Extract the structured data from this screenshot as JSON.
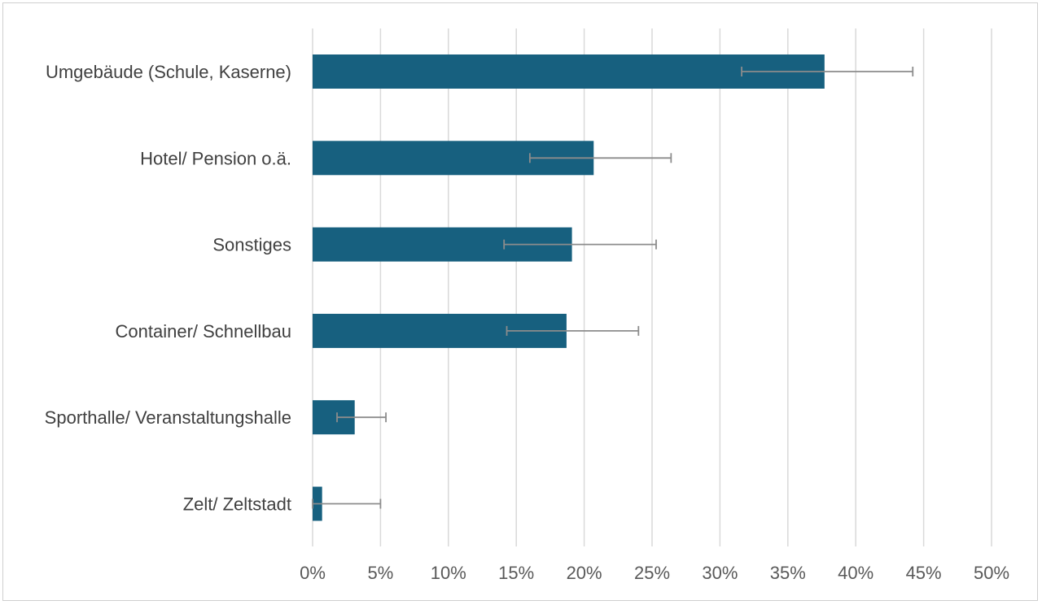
{
  "chart_data": {
    "type": "bar",
    "orientation": "horizontal",
    "categories": [
      "Umgebäude (Schule, Kaserne)",
      "Hotel/ Pension o.ä.",
      "Sonstiges",
      "Container/ Schnellbau",
      "Sporthalle/ Veranstaltungshalle",
      "Zelt/ Zeltstadt"
    ],
    "values": [
      37.7,
      20.7,
      19.1,
      18.7,
      3.1,
      0.7
    ],
    "error_low": [
      31.6,
      16.0,
      14.1,
      14.3,
      1.8,
      0.0
    ],
    "error_high": [
      44.2,
      26.4,
      25.3,
      24.0,
      5.4,
      5.0
    ],
    "xlim": [
      0,
      50
    ],
    "x_ticks": [
      0,
      5,
      10,
      15,
      20,
      25,
      30,
      35,
      40,
      45,
      50
    ],
    "x_tick_labels": [
      "0%",
      "5%",
      "10%",
      "15%",
      "20%",
      "25%",
      "30%",
      "35%",
      "40%",
      "45%",
      "50%"
    ],
    "grid": "vertical",
    "title": "",
    "xlabel": "",
    "ylabel": "",
    "bar_color": "#17607f",
    "error_bar_color": "#8c8c8c",
    "grid_color": "#d9d9d9"
  }
}
